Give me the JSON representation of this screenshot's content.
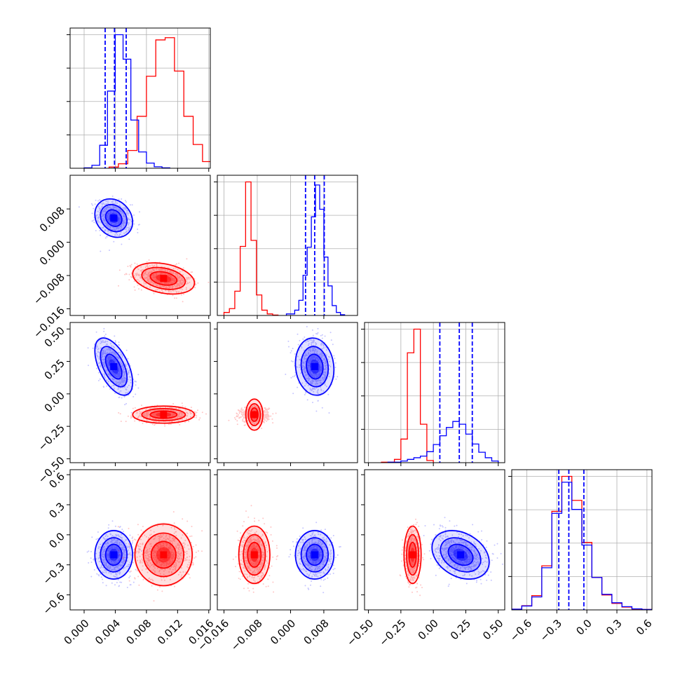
{
  "colors": {
    "series_a": "#0000ff",
    "series_b": "#ff0000",
    "grid": "#b0b0b0",
    "frame": "#000000"
  },
  "chart_data": {
    "type": "corner-plot",
    "title": "",
    "parameters": [
      {
        "range": [
          -0.0018,
          0.0162
        ],
        "ticks": [
          0.0,
          0.004,
          0.008,
          0.012,
          0.016
        ],
        "tick_labels": [
          "0.000",
          "0.004",
          "0.008",
          "0.012",
          "0.016"
        ]
      },
      {
        "range": [
          -0.0176,
          0.0161
        ],
        "ticks": [
          -0.016,
          -0.008,
          0.0,
          0.008
        ],
        "tick_labels": [
          "−0.016",
          "−0.008",
          "0.000",
          "0.008"
        ]
      },
      {
        "range": [
          -0.53,
          0.55
        ],
        "ticks": [
          -0.5,
          -0.25,
          0.0,
          0.25,
          0.5
        ],
        "tick_labels": [
          "−0.50",
          "−0.25",
          "0.00",
          "0.25",
          "0.50"
        ]
      },
      {
        "range": [
          -0.75,
          0.65
        ],
        "ticks": [
          -0.6,
          -0.3,
          0.0,
          0.3,
          0.6
        ],
        "tick_labels": [
          "−0.6",
          "−0.3",
          "0.0",
          "0.3",
          "0.6"
        ]
      }
    ],
    "series": [
      {
        "color": "#0000ff",
        "means": [
          0.0038,
          0.0058,
          0.21,
          -0.2
        ],
        "stds": [
          0.0011,
          0.0021,
          0.1,
          0.11
        ],
        "correlations": [
          [
            0,
            1,
            -0.2
          ],
          [
            0,
            2,
            -0.55
          ],
          [
            1,
            2,
            -0.1
          ],
          [
            0,
            3,
            0.0
          ],
          [
            1,
            3,
            0.0
          ],
          [
            2,
            3,
            -0.3
          ]
        ],
        "quantile_lines": [
          [
            0.0027,
            0.0039,
            0.0054
          ],
          [
            0.0036,
            0.0058,
            0.0081
          ],
          [
            0.05,
            0.2,
            0.3
          ],
          [
            -0.28,
            -0.18,
            -0.03
          ]
        ],
        "histograms": [
          {
            "bin_edges": [
              0.0,
              0.001,
              0.002,
              0.003,
              0.004,
              0.005,
              0.006,
              0.007,
              0.008,
              0.009,
              0.01,
              0.011
            ],
            "counts": [
              3,
              20,
              155,
              520,
              900,
              735,
              325,
              110,
              35,
              10,
              3
            ]
          },
          {
            "bin_edges": [
              -0.001,
              0.001,
              0.002,
              0.003,
              0.004,
              0.005,
              0.006,
              0.007,
              0.008,
              0.009,
              0.01,
              0.011,
              0.012,
              0.013
            ],
            "counts": [
              10,
              35,
              100,
              265,
              450,
              650,
              860,
              700,
              385,
              195,
              65,
              20,
              5
            ]
          },
          {
            "bin_edges": [
              -0.35,
              -0.25,
              -0.2,
              -0.15,
              -0.1,
              -0.05,
              0.0,
              0.05,
              0.1,
              0.15,
              0.2,
              0.25,
              0.3,
              0.35,
              0.4,
              0.45,
              0.5
            ],
            "counts": [
              5,
              15,
              30,
              45,
              60,
              100,
              165,
              245,
              320,
              375,
              350,
              260,
              170,
              95,
              45,
              15
            ]
          },
          {
            "bin_edges": [
              -0.75,
              -0.65,
              -0.55,
              -0.45,
              -0.35,
              -0.25,
              -0.15,
              -0.05,
              0.05,
              0.15,
              0.25,
              0.35,
              0.45,
              0.55,
              0.65
            ],
            "counts": [
              5,
              30,
              100,
              325,
              745,
              985,
              775,
              500,
              250,
              120,
              55,
              25,
              8,
              3
            ]
          }
        ]
      },
      {
        "color": "#ff0000",
        "means": [
          0.0102,
          -0.0087,
          -0.16,
          -0.2
        ],
        "stds": [
          0.0018,
          0.0017,
          0.03,
          0.13
        ],
        "correlations": [
          [
            0,
            1,
            -0.3
          ],
          [
            0,
            2,
            0.0
          ],
          [
            1,
            2,
            0.0
          ],
          [
            0,
            3,
            0.0
          ],
          [
            1,
            3,
            0.0
          ],
          [
            2,
            3,
            0.0
          ]
        ],
        "quantile_lines": [],
        "histograms": [
          {
            "bin_edges": [
              0.0032,
              0.0044,
              0.0056,
              0.0068,
              0.008,
              0.0092,
              0.0104,
              0.0116,
              0.0128,
              0.014,
              0.0152,
              0.0164
            ],
            "counts": [
              8,
              30,
              120,
              350,
              620,
              865,
              880,
              655,
              350,
              160,
              45
            ]
          },
          {
            "bin_edges": [
              -0.016,
              -0.0147,
              -0.0134,
              -0.0121,
              -0.0108,
              -0.0095,
              -0.0082,
              -0.0069,
              -0.0056,
              -0.0043,
              -0.003
            ],
            "counts": [
              20,
              45,
              160,
              455,
              880,
              495,
              135,
              35,
              10,
              3
            ]
          },
          {
            "bin_edges": [
              -0.4,
              -0.3,
              -0.25,
              -0.2,
              -0.15,
              -0.1,
              -0.05,
              0.0
            ],
            "counts": [
              5,
              30,
              215,
              1000,
              1215,
              350,
              20
            ]
          },
          {
            "bin_edges": [
              -0.75,
              -0.65,
              -0.55,
              -0.45,
              -0.35,
              -0.25,
              -0.15,
              -0.05,
              0.05,
              0.15,
              0.25,
              0.35,
              0.45,
              0.55,
              0.65
            ],
            "counts": [
              5,
              32,
              110,
              340,
              760,
              1030,
              845,
              520,
              250,
              115,
              50,
              22,
              7,
              3
            ]
          }
        ]
      }
    ],
    "grid": true
  }
}
